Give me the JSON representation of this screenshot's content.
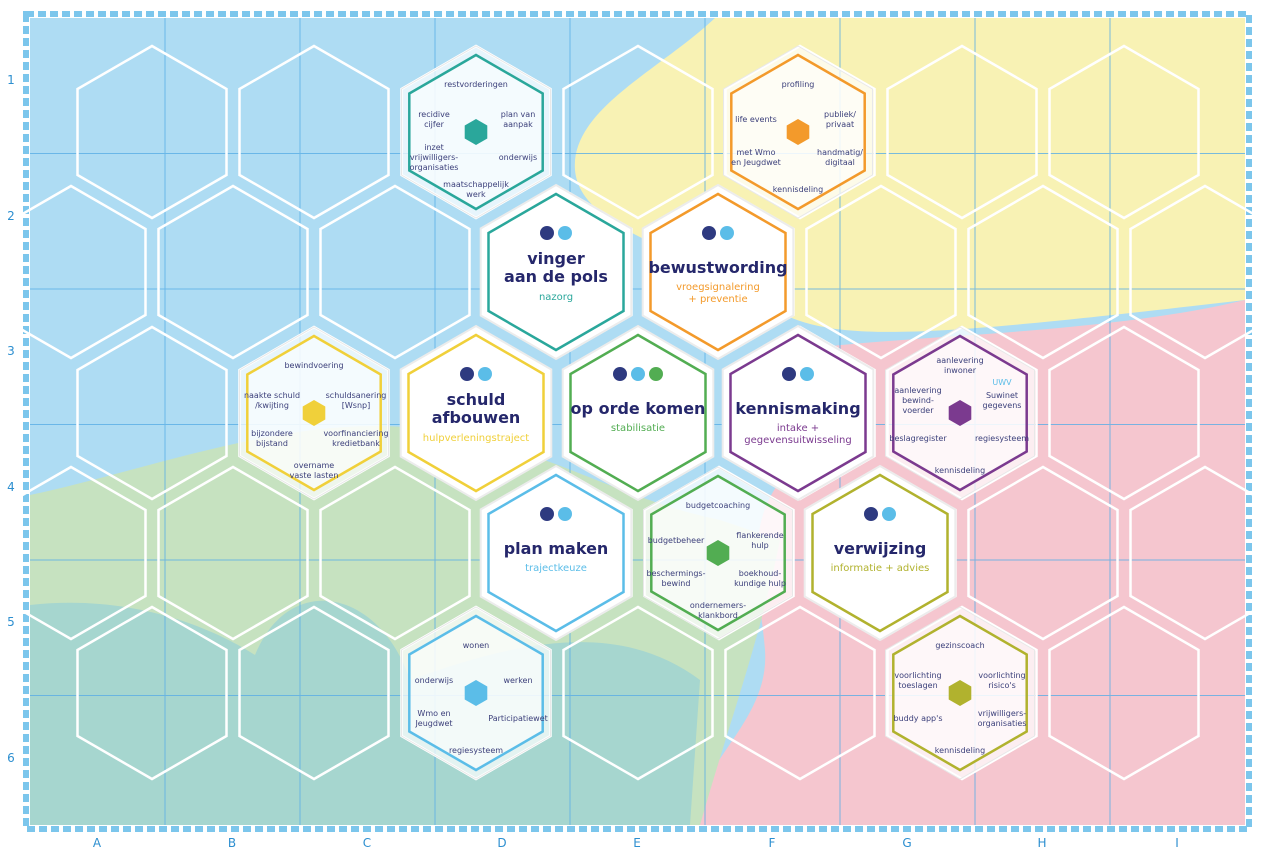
{
  "grid": {
    "columns": [
      "A",
      "B",
      "C",
      "D",
      "E",
      "F",
      "G",
      "H",
      "I"
    ],
    "rows": [
      "1",
      "2",
      "3",
      "4",
      "5",
      "6"
    ]
  },
  "colors": {
    "teal": "#2aa79b",
    "orange": "#f39a2b",
    "yellow": "#f0d03a",
    "green": "#52ad52",
    "purple": "#7b3a8f",
    "blue": "#5bbde8",
    "olive": "#b1b22e",
    "title": "#25276b",
    "water": "#aedcf3",
    "field": "#f8f2b4",
    "rose": "#f5c6cf",
    "meadow": "#c6e2c0",
    "forest": "#9fd3cf"
  },
  "main_hexes": [
    {
      "id": "vinger",
      "title": "vinger\naan de pols",
      "subtitle": "nazorg",
      "color": "teal",
      "icons": [
        "piggy-bank-icon",
        "people-icon"
      ]
    },
    {
      "id": "bewustwording",
      "title": "bewustwording",
      "subtitle": "vroegsignalering\n+ preventie",
      "color": "orange",
      "icons": [
        "warning-icon",
        "target-people-icon"
      ]
    },
    {
      "id": "schuld",
      "title": "schuld\nafbouwen",
      "subtitle": "hulpverleningstraject",
      "color": "yellow",
      "icons": [
        "walking-person-icon",
        "progress-steps-icon"
      ]
    },
    {
      "id": "oporde",
      "title": "op orde komen",
      "subtitle": "stabilisatie",
      "color": "green",
      "icons": [
        "sad-face-icon",
        "dots-icon",
        "neutral-face-icon"
      ]
    },
    {
      "id": "kennismaking",
      "title": "kennismaking",
      "subtitle": "intake +\ngegevensuitwisseling",
      "color": "purple",
      "icons": [
        "id-card-icon",
        "chat-bubbles-icon"
      ]
    },
    {
      "id": "planmaken",
      "title": "plan maken",
      "subtitle": "trajectkeuze",
      "color": "blue",
      "icons": [
        "route-icon",
        "group-icon"
      ]
    },
    {
      "id": "verwijzing",
      "title": "verwijzing",
      "subtitle": "informatie + advies",
      "color": "olive",
      "icons": [
        "pointing-hand-icon",
        "laptop-icon"
      ]
    }
  ],
  "detail_hexes": [
    {
      "id": "nazorg-details",
      "color": "teal",
      "items": [
        "restvorderingen",
        "recidive\ncijfer",
        "plan van\naanpak",
        "inzet\nvrijwilligers-\norganisaties",
        "onderwijs",
        "maatschappelijk\nwerk"
      ]
    },
    {
      "id": "preventie-details",
      "color": "orange",
      "items": [
        "profiling",
        "life events",
        "publiek/\nprivaat",
        "met Wmo\nen Jeugdwet",
        "handmatig/\ndigitaal",
        "kennisdeling"
      ]
    },
    {
      "id": "hulpverlening-details",
      "color": "yellow",
      "items": [
        "bewindvoering",
        "naakte schuld\n/kwijting",
        "schuldsanering\n[Wsnp]",
        "bijzondere\nbijstand",
        "voorfinanciering\nkredietbank",
        "overname\nvaste lasten"
      ]
    },
    {
      "id": "intake-details",
      "color": "purple",
      "items": [
        "aanlevering\ninwoner",
        "aanlevering\nbewind-\nvoerder",
        "Suwinet\ngegevens",
        "beslagregister",
        "regiesysteem",
        "kennisdeling"
      ],
      "tag": "UWV"
    },
    {
      "id": "stabilisatie-details",
      "color": "green",
      "items": [
        "budgetcoaching",
        "budgetbeheer",
        "flankerende\nhulp",
        "beschermings-\nbewind",
        "boekhoud-\nkundige hulp",
        "ondernemers-\nklankbord"
      ]
    },
    {
      "id": "traject-details",
      "color": "blue",
      "items": [
        "wonen",
        "onderwijs",
        "werken",
        "Wmo en\nJeugdwet",
        "Participatiewet",
        "regiesysteem"
      ]
    },
    {
      "id": "advies-details",
      "color": "olive",
      "items": [
        "gezinscoach",
        "voorlichting\ntoeslagen",
        "voorlichting\nrisico's",
        "buddy app's",
        "vrijwilligers-\norganisaties",
        "kennisdeling"
      ]
    }
  ]
}
